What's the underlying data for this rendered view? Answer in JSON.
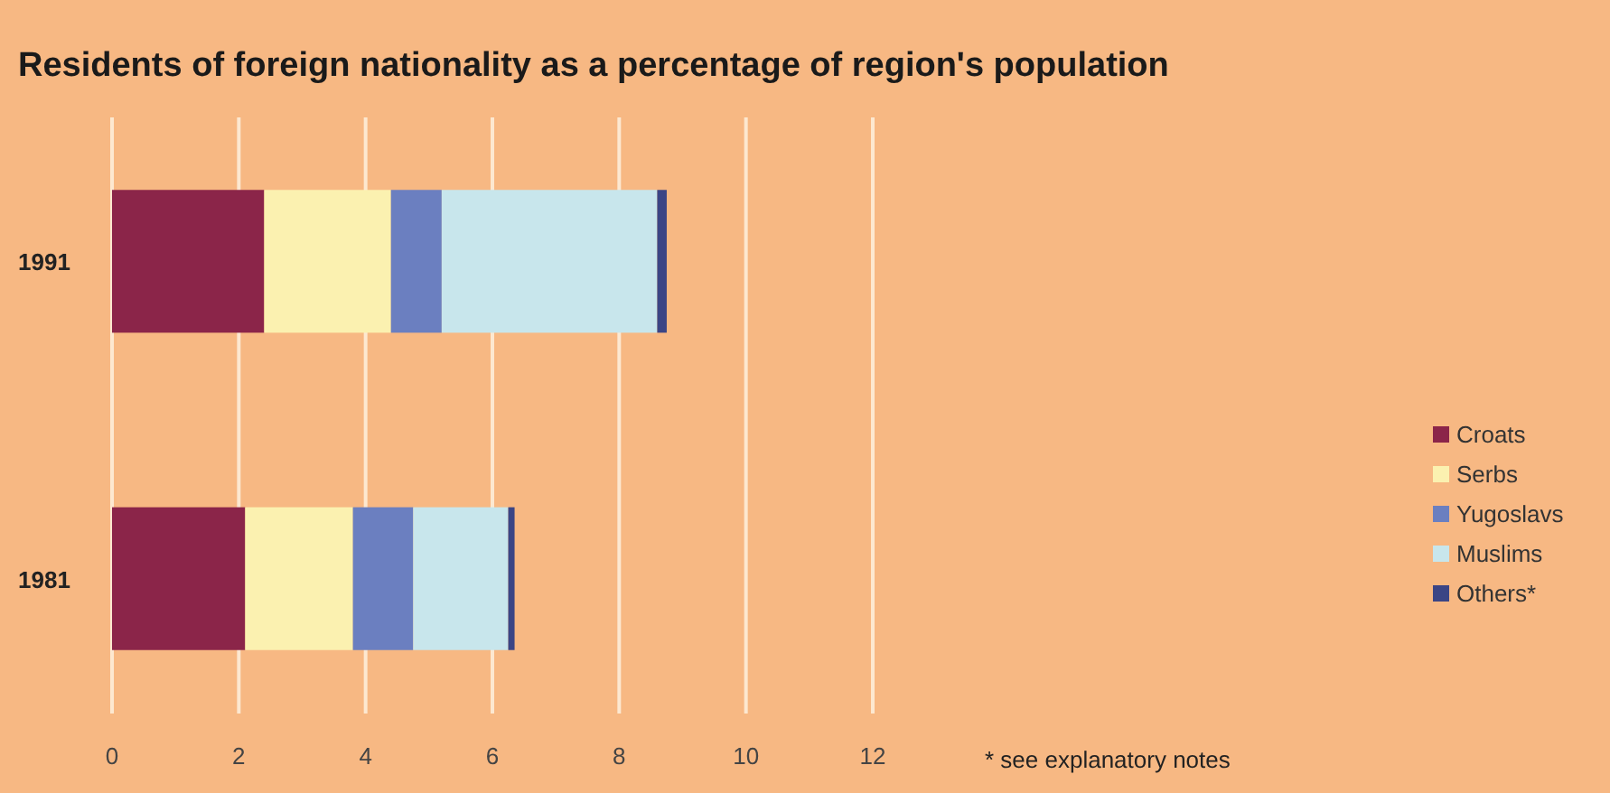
{
  "chart_data": {
    "type": "bar",
    "orientation": "horizontal",
    "stacked": true,
    "title": "Residents of foreign nationality as a percentage of region's population",
    "categories": [
      "1991",
      "1981"
    ],
    "series": [
      {
        "name": "Croats",
        "color": "#8b2549",
        "values": [
          2.4,
          2.1
        ]
      },
      {
        "name": "Serbs",
        "color": "#fbf1b0",
        "values": [
          2.0,
          1.7
        ]
      },
      {
        "name": "Yugoslavs",
        "color": "#6b7fc0",
        "values": [
          0.8,
          0.95
        ]
      },
      {
        "name": "Muslims",
        "color": "#c8e6ec",
        "values": [
          3.4,
          1.5
        ]
      },
      {
        "name": "Others*",
        "color": "#3b4585",
        "values": [
          0.15,
          0.1
        ]
      }
    ],
    "xlim": [
      0,
      12
    ],
    "xticks": [
      0,
      2,
      4,
      6,
      8,
      10,
      12
    ],
    "grid": "x",
    "legend": "right",
    "annotations": [
      "* see explanatory notes"
    ]
  }
}
